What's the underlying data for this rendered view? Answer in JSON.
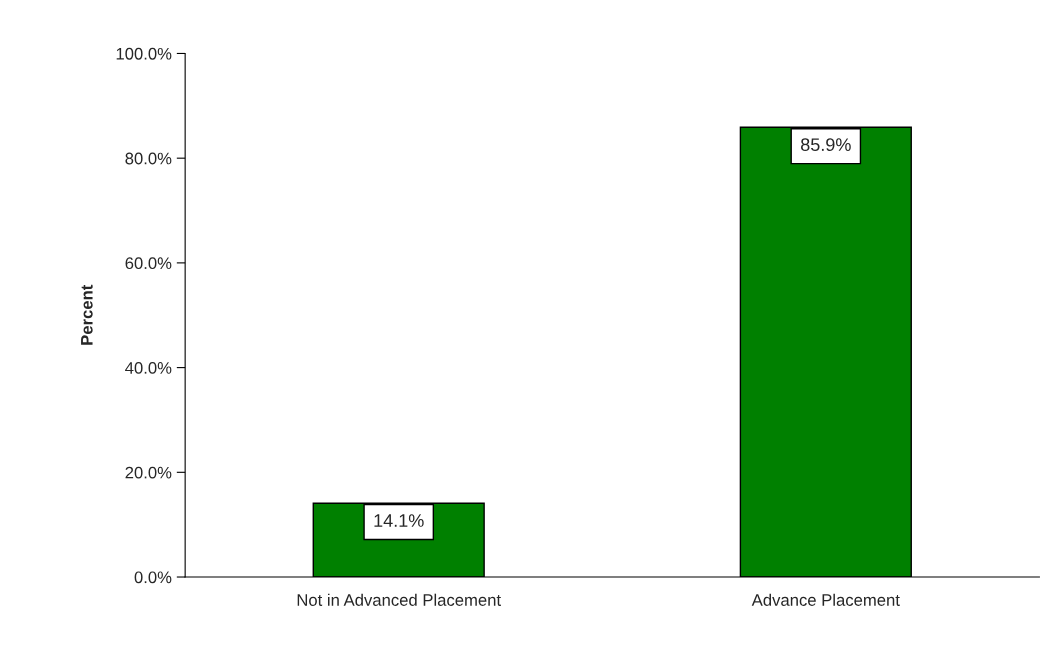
{
  "chart_data": {
    "type": "bar",
    "ylabel": "Percent",
    "categories": [
      "Not in Advanced Placement",
      "Advance Placement"
    ],
    "values": [
      14.1,
      85.9
    ],
    "color": "#008000",
    "value_labels": [
      "14.1%",
      "85.9%"
    ],
    "ylim": [
      0,
      100
    ],
    "yticks": [
      {
        "value": 0,
        "label": "0.0%"
      },
      {
        "value": 20,
        "label": "20.0%"
      },
      {
        "value": 40,
        "label": "40.0%"
      },
      {
        "value": 60,
        "label": "60.0%"
      },
      {
        "value": 80,
        "label": "80.0%"
      },
      {
        "value": 100,
        "label": "100.0%"
      }
    ],
    "grid": false,
    "legend": false
  }
}
